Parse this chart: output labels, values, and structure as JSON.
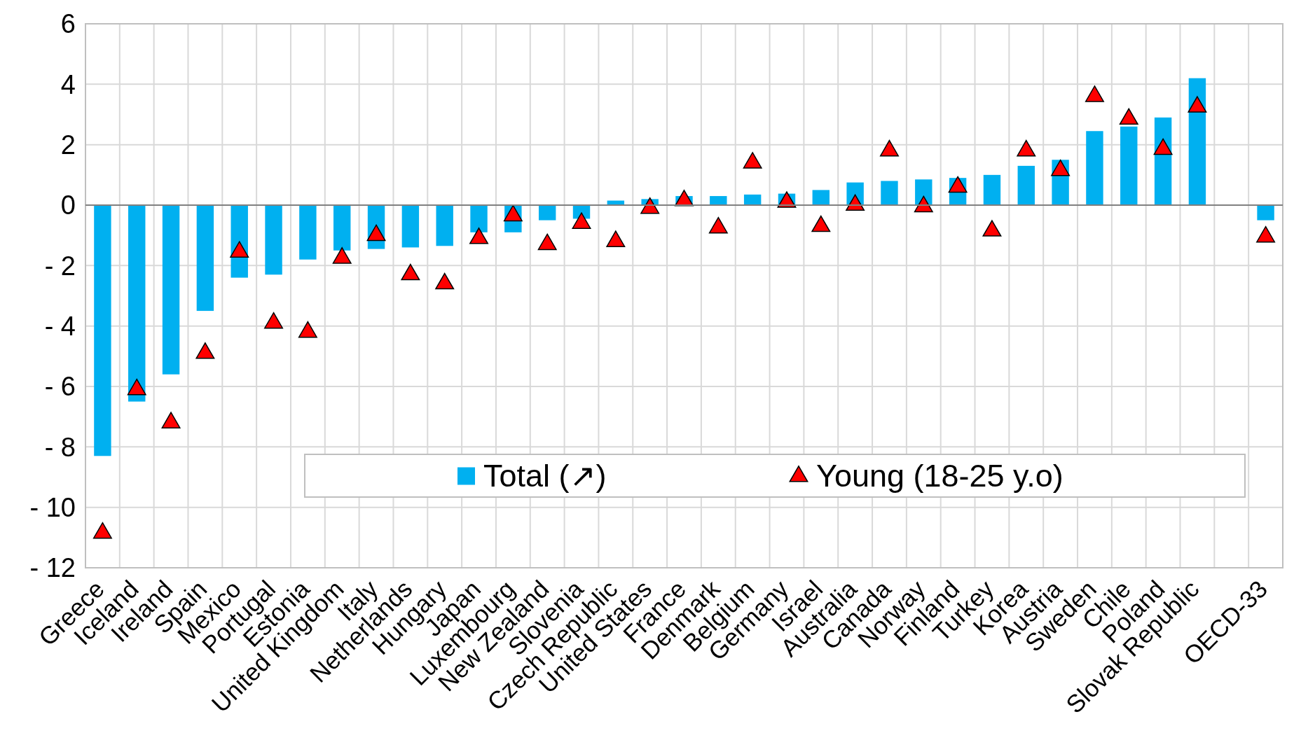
{
  "chart_data": {
    "type": "bar",
    "categories": [
      "Greece",
      "Iceland",
      "Ireland",
      "Spain",
      "Mexico",
      "Portugal",
      "Estonia",
      "United Kingdom",
      "Italy",
      "Netherlands",
      "Hungary",
      "Japan",
      "Luxembourg",
      "New Zealand",
      "Slovenia",
      "Czech Republic",
      "United States",
      "France",
      "Denmark",
      "Belgium",
      "Germany",
      "Israel",
      "Australia",
      "Canada",
      "Norway",
      "Finland",
      "Turkey",
      "Korea",
      "Austria",
      "Sweden",
      "Chile",
      "Poland",
      "Slovak Republic",
      null,
      "OECD-33"
    ],
    "series": [
      {
        "name": "Total  (↗)",
        "color": "#00b0f0",
        "values": [
          -8.3,
          -6.5,
          -5.6,
          -3.5,
          -2.4,
          -2.3,
          -1.8,
          -1.5,
          -1.45,
          -1.4,
          -1.35,
          -0.9,
          -0.9,
          -0.5,
          -0.45,
          0.15,
          0.2,
          0.3,
          0.3,
          0.35,
          0.38,
          0.5,
          0.75,
          0.8,
          0.85,
          0.9,
          1.0,
          1.3,
          1.5,
          2.45,
          2.6,
          2.9,
          4.2,
          null,
          -0.5
        ]
      },
      {
        "name": "Young (18-25 y.o)",
        "type": "scatter",
        "color": "#ff0000",
        "marker": "triangle",
        "x": [
          "Greece",
          "Iceland",
          "Ireland",
          "Spain",
          "Mexico",
          "Portugal",
          "Estonia",
          "United Kingdom",
          "Italy",
          "Netherlands",
          "Hungary",
          "Japan",
          "Luxembourg",
          "New Zealand",
          "Slovenia",
          "Czech Republic",
          "United States",
          "France",
          "Denmark",
          "Belgium",
          "Germany",
          "Israel",
          "Australia",
          "Canada",
          "Norway",
          "Finland",
          "Turkey",
          "Korea",
          "Austria",
          "Sweden",
          "Chile",
          "Poland",
          "Slovak Republic",
          "OECD-33"
        ],
        "values": [
          -10.85,
          -6.1,
          -7.2,
          -4.9,
          -1.55,
          -3.9,
          -4.2,
          -1.75,
          -1.0,
          -2.3,
          -2.6,
          -1.1,
          -0.35,
          -1.3,
          -0.6,
          -1.2,
          -0.1,
          0.15,
          -0.75,
          1.4,
          0.1,
          -0.7,
          0.0,
          1.8,
          -0.05,
          0.6,
          -0.85,
          1.8,
          1.15,
          3.6,
          2.85,
          1.85,
          3.25,
          -1.05
        ]
      }
    ],
    "ylim": [
      -12,
      6
    ],
    "yticks": [
      {
        "value": -12,
        "label": "- 12"
      },
      {
        "value": -10,
        "label": "- 10"
      },
      {
        "value": -8,
        "label": "- 8"
      },
      {
        "value": -6,
        "label": "- 6"
      },
      {
        "value": -4,
        "label": "- 4"
      },
      {
        "value": -2,
        "label": "- 2"
      },
      0,
      2,
      4,
      6
    ],
    "grid": true,
    "legend": "bottom"
  }
}
